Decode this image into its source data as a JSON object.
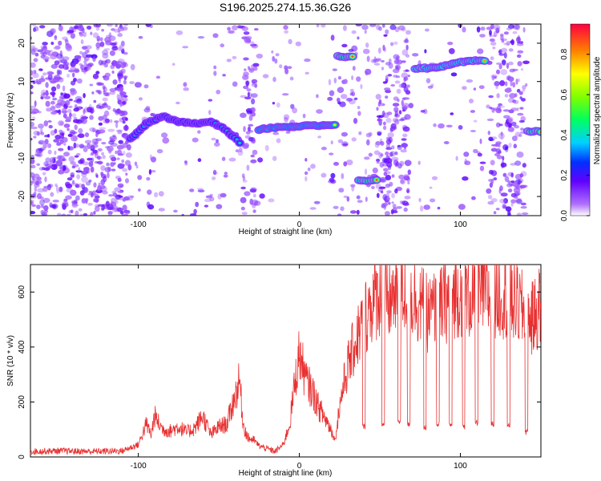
{
  "page_title": "S196.2025.274.15.36.G26",
  "chart_data": [
    {
      "type": "heatmap",
      "title": "S196.2025.274.15.36.G26",
      "xlabel": "Height of straight line (km)",
      "ylabel": "Frequency (Hz)",
      "xlim": [
        -167,
        150
      ],
      "ylim": [
        -25,
        25
      ],
      "xticks": [
        -100,
        0,
        100
      ],
      "yticks": [
        -20,
        -10,
        0,
        10,
        20
      ],
      "colorbar": {
        "label": "Normalized spectral amplitude",
        "range": [
          0.0,
          0.95
        ],
        "ticks": [
          "0.0",
          "0.2",
          "0.4",
          "0.6",
          "0.8"
        ],
        "tick_values": [
          0.0,
          0.2,
          0.4,
          0.6,
          0.8
        ]
      },
      "noise_bands": [
        {
          "x0": -167,
          "x1": -107,
          "density": 1.0
        },
        {
          "x0": -107,
          "x1": -35,
          "density": 0.12
        },
        {
          "x0": -35,
          "x1": -27,
          "density": 0.8
        },
        {
          "x0": -27,
          "x1": 20,
          "density": 0.1
        },
        {
          "x0": 20,
          "x1": 48,
          "density": 0.25
        },
        {
          "x0": 48,
          "x1": 68,
          "density": 0.85
        },
        {
          "x0": 68,
          "x1": 118,
          "density": 0.1
        },
        {
          "x0": 118,
          "x1": 141,
          "density": 0.75
        }
      ],
      "signal_tracks": [
        {
          "name": "track-a",
          "x": [
            -105,
            -95,
            -85,
            -75,
            -65,
            -55,
            -48,
            -42,
            -37
          ],
          "freq": [
            -5,
            -1,
            1,
            -0.5,
            -1,
            -0.5,
            -2,
            -4,
            -6
          ],
          "amplitude": 0.45
        },
        {
          "name": "track-b",
          "x": [
            -25,
            -15,
            -5,
            5,
            15,
            22
          ],
          "freq": [
            -2.5,
            -2,
            -1.8,
            -1.5,
            -1.5,
            -1.5
          ],
          "amplitude": 0.75
        },
        {
          "name": "track-c",
          "x": [
            24,
            33
          ],
          "freq": [
            16.5,
            16.5
          ],
          "amplitude": 0.95
        },
        {
          "name": "track-d",
          "x": [
            37,
            48
          ],
          "freq": [
            -15.8,
            -15.8
          ],
          "amplitude": 0.95
        },
        {
          "name": "track-e",
          "x": [
            72,
            85,
            95,
            105,
            115
          ],
          "freq": [
            13.5,
            13.5,
            14.5,
            15.5,
            15.5
          ],
          "amplitude": 0.85
        },
        {
          "name": "track-f",
          "x": [
            142,
            150
          ],
          "freq": [
            -3,
            -3
          ],
          "amplitude": 0.9
        }
      ]
    },
    {
      "type": "line",
      "xlabel": "Height of straight line (km)",
      "ylabel": "SNR (10 * v/v)",
      "xlim": [
        -167,
        150
      ],
      "ylim": [
        0,
        700
      ],
      "xticks": [
        -100,
        0,
        100
      ],
      "yticks": [
        0,
        200,
        400,
        600
      ],
      "series": [
        {
          "name": "SNR",
          "color": "#e83030",
          "x": [
            -167,
            -150,
            -130,
            -110,
            -100,
            -95,
            -92,
            -90,
            -85,
            -80,
            -75,
            -70,
            -65,
            -60,
            -55,
            -50,
            -45,
            -40,
            -37,
            -35,
            -32,
            -28,
            -25,
            -20,
            -15,
            -10,
            -6,
            -3,
            0,
            2,
            4,
            8,
            12,
            18,
            22,
            26,
            30,
            35,
            40,
            45,
            50,
            55,
            60,
            65,
            70,
            75,
            80,
            85,
            90,
            95,
            100,
            105,
            110,
            115,
            120,
            125,
            130,
            135,
            140,
            145,
            150
          ],
          "y": [
            20,
            22,
            20,
            22,
            45,
            120,
            80,
            150,
            100,
            95,
            110,
            90,
            105,
            150,
            80,
            110,
            120,
            220,
            280,
            120,
            70,
            60,
            40,
            30,
            20,
            45,
            120,
            260,
            380,
            330,
            280,
            240,
            180,
            120,
            70,
            220,
            330,
            420,
            500,
            560,
            600,
            560,
            600,
            600,
            580,
            560,
            520,
            540,
            560,
            590,
            600,
            580,
            590,
            600,
            560,
            600,
            580,
            560,
            520,
            500,
            560
          ]
        }
      ],
      "dips": [
        {
          "x": 22,
          "y": 70
        },
        {
          "x": 40,
          "y": 110
        },
        {
          "x": 52,
          "y": 120
        },
        {
          "x": 62,
          "y": 130
        },
        {
          "x": 68,
          "y": 120
        },
        {
          "x": 78,
          "y": 105
        },
        {
          "x": 86,
          "y": 120
        },
        {
          "x": 94,
          "y": 115
        },
        {
          "x": 102,
          "y": 110
        },
        {
          "x": 110,
          "y": 125
        },
        {
          "x": 120,
          "y": 120
        },
        {
          "x": 130,
          "y": 115
        },
        {
          "x": 141,
          "y": 90
        }
      ]
    }
  ]
}
